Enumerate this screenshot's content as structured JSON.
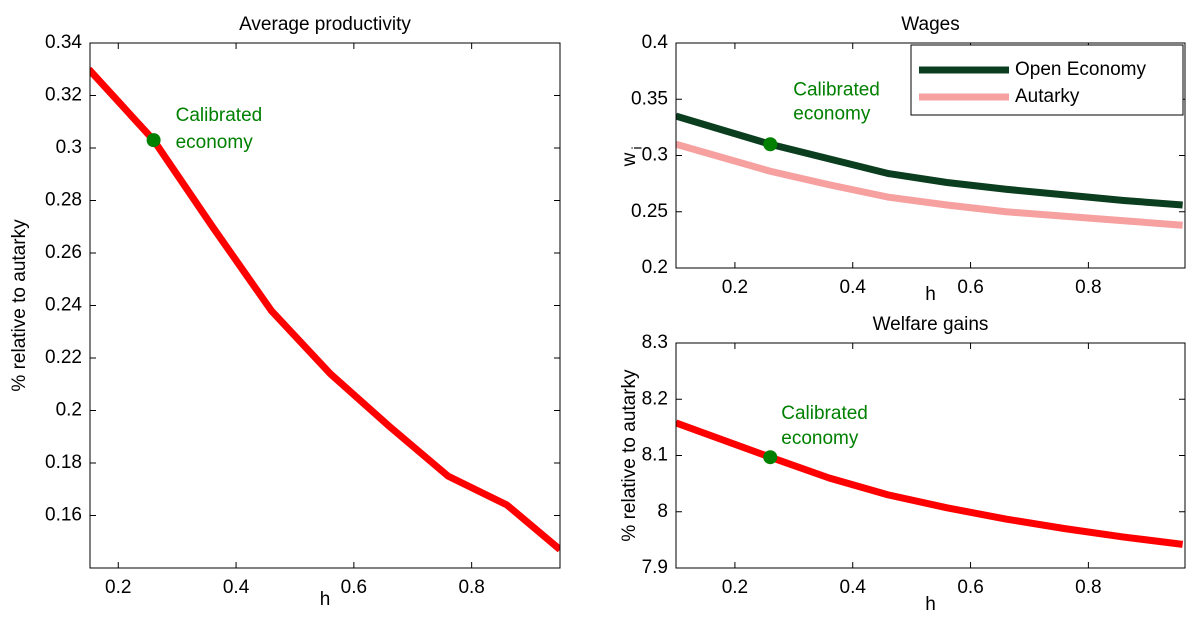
{
  "chart_data": [
    {
      "type": "line",
      "title": "Average productivity",
      "xlabel": "h",
      "ylabel": "% relative to autarky",
      "x": [
        0.15,
        0.26,
        0.36,
        0.46,
        0.56,
        0.66,
        0.76,
        0.86,
        0.95
      ],
      "series": [
        {
          "name": "Average productivity",
          "color": "#ff0000",
          "values": [
            0.33,
            0.303,
            0.27,
            0.238,
            0.214,
            0.194,
            0.175,
            0.164,
            0.147
          ]
        }
      ],
      "xlim": [
        0.152,
        0.95
      ],
      "xticks": [
        0.2,
        0.4,
        0.6,
        0.8
      ],
      "ylim": [
        0.14,
        0.34
      ],
      "yticks": [
        0.16,
        0.18,
        0.2,
        0.22,
        0.24,
        0.26,
        0.28,
        0.3,
        0.32,
        0.34
      ],
      "highlight": {
        "x": 0.26,
        "y": 0.303,
        "label": [
          "Calibrated",
          "economy"
        ],
        "color": "#008000"
      }
    },
    {
      "type": "line",
      "title": "Wages",
      "xlabel": "h",
      "ylabel": {
        "text": "w",
        "subscript": "i"
      },
      "x": [
        0.1,
        0.26,
        0.36,
        0.46,
        0.56,
        0.66,
        0.76,
        0.86,
        0.96
      ],
      "series": [
        {
          "name": "Open Economy",
          "color": "#0b3d1f",
          "values": [
            0.335,
            0.31,
            0.297,
            0.284,
            0.276,
            0.27,
            0.265,
            0.26,
            0.256
          ]
        },
        {
          "name": "Autarky",
          "color": "#f7a0a0",
          "values": [
            0.31,
            0.286,
            0.274,
            0.263,
            0.256,
            0.25,
            0.246,
            0.242,
            0.238
          ]
        }
      ],
      "legend": "upper right",
      "xlim": [
        0.1,
        0.964
      ],
      "xticks": [
        0.2,
        0.4,
        0.6,
        0.8
      ],
      "ylim": [
        0.2,
        0.4
      ],
      "yticks": [
        0.2,
        0.25,
        0.3,
        0.35,
        0.4
      ],
      "highlight": {
        "x": 0.26,
        "y": 0.31,
        "label": [
          "Calibrated",
          "economy"
        ],
        "color": "#008000"
      }
    },
    {
      "type": "line",
      "title": "Welfare gains",
      "xlabel": "h",
      "ylabel": "% relative to autarky",
      "x": [
        0.1,
        0.26,
        0.36,
        0.46,
        0.56,
        0.66,
        0.76,
        0.86,
        0.96
      ],
      "series": [
        {
          "name": "Welfare gains",
          "color": "#ff0000",
          "values": [
            8.158,
            8.097,
            8.06,
            8.03,
            8.007,
            7.987,
            7.97,
            7.955,
            7.942
          ]
        }
      ],
      "xlim": [
        0.1,
        0.964
      ],
      "xticks": [
        0.2,
        0.4,
        0.6,
        0.8
      ],
      "ylim": [
        7.9,
        8.3
      ],
      "yticks": [
        7.9,
        8,
        8.1,
        8.2,
        8.3
      ],
      "highlight": {
        "x": 0.26,
        "y": 8.097,
        "label": [
          "Calibrated",
          "economy"
        ],
        "color": "#008000"
      }
    }
  ]
}
